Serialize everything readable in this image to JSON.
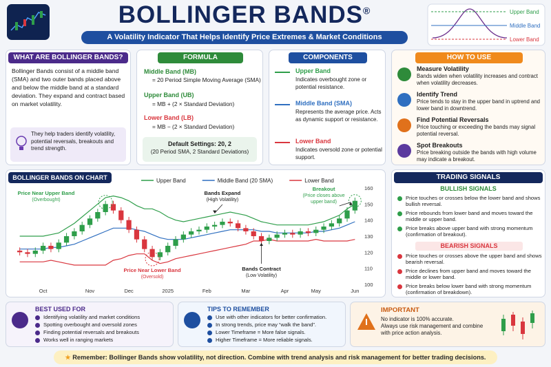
{
  "header": {
    "title": "BOLLINGER BANDS",
    "title_mark": "®",
    "subtitle": "A Volatility Indicator That Helps Identify Price Extremes & Market Conditions",
    "diagram": [
      {
        "label": "Upper Band",
        "color": "#2e9e4a"
      },
      {
        "label": "Middle Band",
        "color": "#2f6fc0"
      },
      {
        "label": "Lower Band",
        "color": "#d9363e"
      }
    ]
  },
  "what": {
    "title": "WHAT ARE BOLLINGER BANDS?",
    "body": "Bollinger Bands consist of a middle band (SMA) and two outer bands placed above and below the middle band at a standard deviation. They expand and contract based on market volatility.",
    "note": "They help traders identify volatility, potential reversals, breakouts and trend strength."
  },
  "formula": {
    "title": "FORMULA",
    "items": [
      {
        "label": "Middle Band (MB)",
        "formula": "= 20 Period Simple Moving Average (SMA)"
      },
      {
        "label": "Upper Band (UB)",
        "formula": "= MB + (2 × Standard Deviation)"
      },
      {
        "label": "Lower Band (LB)",
        "formula": "= MB − (2 × Standard Deviation)"
      }
    ],
    "settings_title": "Default Settings: 20, 2",
    "settings_note": "(20 Period SMA, 2 Standard Deviations)"
  },
  "components": {
    "title": "COMPONENTS",
    "items": [
      {
        "name": "Upper Band",
        "desc": "Indicates overbought zone or potential resistance."
      },
      {
        "name": "Middle Band (SMA)",
        "desc": "Represents the average price. Acts as dynamic support or resistance."
      },
      {
        "name": "Lower Band",
        "desc": "Indicates oversold zone or potential support."
      }
    ]
  },
  "how_to_use": {
    "title": "HOW TO USE",
    "items": [
      {
        "title": "Measure Volatility",
        "desc": "Bands widen when volatility increases and contract when volatility decreases."
      },
      {
        "title": "Identify Trend",
        "desc": "Price tends to stay in the upper band in uptrend and lower band in downtrend."
      },
      {
        "title": "Find Potential Reversals",
        "desc": "Price touching or exceeding the bands may signal potential reversal."
      },
      {
        "title": "Spot Breakouts",
        "desc": "Price breaking outside the bands with high volume may indicate a breakout."
      }
    ]
  },
  "chart_data": {
    "type": "candlestick",
    "title": "BOLLINGER BANDS ON CHART",
    "categories": [
      null,
      null,
      null,
      "Oct",
      null,
      null,
      null,
      null,
      null,
      "Nov",
      null,
      null,
      null,
      null,
      "Dec",
      null,
      null,
      null,
      null,
      "2025",
      null,
      null,
      null,
      null,
      "Feb",
      null,
      null,
      null,
      null,
      "Mar",
      null,
      null,
      null,
      null,
      "Apr",
      null,
      null,
      null,
      "May",
      null,
      null,
      null,
      null,
      "Jun"
    ],
    "ohlc": {
      "up_color": "#2e9e4a",
      "down_color": "#d9363e",
      "open": [
        121,
        120,
        119,
        121,
        124,
        122,
        126,
        130,
        133,
        137,
        141,
        145,
        150,
        146,
        140,
        134,
        128,
        122,
        117,
        120,
        124,
        128,
        131,
        133,
        134,
        136,
        137,
        139,
        138,
        135,
        133,
        130,
        127,
        129,
        131,
        132,
        131,
        133,
        132,
        134,
        136,
        138,
        141,
        146
      ],
      "high": [
        123,
        122,
        123,
        126,
        126,
        128,
        132,
        135,
        139,
        143,
        147,
        152,
        152,
        148,
        142,
        136,
        130,
        124,
        122,
        126,
        130,
        133,
        135,
        136,
        138,
        139,
        141,
        141,
        140,
        137,
        135,
        132,
        131,
        133,
        134,
        134,
        135,
        135,
        136,
        138,
        140,
        143,
        148,
        154
      ],
      "low": [
        118,
        117,
        117,
        119,
        120,
        120,
        124,
        128,
        131,
        135,
        139,
        143,
        144,
        138,
        132,
        126,
        120,
        115,
        115,
        118,
        122,
        126,
        129,
        131,
        132,
        134,
        135,
        136,
        133,
        131,
        128,
        125,
        125,
        127,
        129,
        129,
        129,
        130,
        130,
        132,
        134,
        136,
        139,
        144
      ],
      "close": [
        120,
        119,
        121,
        124,
        122,
        126,
        130,
        133,
        137,
        141,
        145,
        150,
        146,
        140,
        134,
        128,
        122,
        117,
        120,
        124,
        128,
        131,
        133,
        134,
        136,
        137,
        139,
        138,
        135,
        133,
        130,
        127,
        129,
        131,
        132,
        131,
        133,
        132,
        134,
        136,
        138,
        141,
        146,
        152
      ]
    },
    "series": [
      {
        "name": "Upper Band",
        "color": "#2e9e4a",
        "values": [
          130,
          130,
          130,
          130,
          131,
          132,
          135,
          138,
          142,
          146,
          150,
          154,
          155,
          154,
          152,
          149,
          147,
          147,
          145,
          142,
          140,
          139,
          140,
          141,
          142,
          143,
          144,
          145,
          144,
          143,
          141,
          139,
          138,
          137,
          137,
          137,
          137,
          137,
          138,
          139,
          141,
          143,
          147,
          150
        ]
      },
      {
        "name": "Middle Band (20 SMA)",
        "color": "#2f6fc0",
        "values": [
          122,
          122,
          122,
          122,
          123,
          123,
          124,
          125,
          127,
          129,
          131,
          133,
          135,
          135,
          135,
          134,
          133,
          131,
          129,
          128,
          128,
          128,
          129,
          130,
          131,
          132,
          133,
          134,
          134,
          134,
          134,
          133,
          133,
          132,
          132,
          132,
          132,
          132,
          133,
          133,
          134,
          135,
          137,
          139
        ]
      },
      {
        "name": "Lower Band",
        "color": "#d9363e",
        "values": [
          114,
          114,
          114,
          114,
          115,
          114,
          113,
          112,
          112,
          112,
          112,
          112,
          115,
          116,
          118,
          119,
          119,
          115,
          113,
          114,
          116,
          117,
          118,
          119,
          120,
          121,
          122,
          123,
          124,
          125,
          127,
          127,
          128,
          127,
          127,
          127,
          127,
          127,
          128,
          127,
          127,
          127,
          127,
          128
        ]
      }
    ],
    "ylim": [
      100,
      160
    ],
    "yticks": [
      100,
      110,
      120,
      130,
      140,
      150,
      160
    ],
    "grid": false,
    "annotations": [
      {
        "lines": [
          "Price Near Upper Band",
          "(Overbought)"
        ],
        "color": "#2e9e4a"
      },
      {
        "lines": [
          "Price Near Lower Band",
          "(Oversold)"
        ],
        "color": "#d9363e"
      },
      {
        "lines": [
          "Bands Expand",
          "(High Volatility)"
        ],
        "color": "#1d1d1d"
      },
      {
        "lines": [
          "Bands Contract",
          "(Low Volatility)"
        ],
        "color": "#1d1d1d"
      },
      {
        "lines": [
          "Breakout",
          "(Price closes above",
          "upper band)"
        ],
        "color": "#2e9e4a"
      }
    ]
  },
  "signals": {
    "title": "TRADING SIGNALS",
    "bullish": {
      "title": "BULLISH SIGNALS",
      "items": [
        "Price touches or crosses below the lower band and shows bullish reversal.",
        "Price rebounds from lower band and moves toward the middle or upper band.",
        "Price breaks above upper band with strong momentum (confirmation of breakout)."
      ]
    },
    "bearish": {
      "title": "BEARISH SIGNALS",
      "items": [
        "Price touches or crosses above the upper band and shows bearish reversal.",
        "Price declines from upper band and moves toward the middle or lower band.",
        "Price breaks below lower band with strong momentum (confirmation of breakdown)."
      ]
    }
  },
  "best_used": {
    "title": "BEST USED FOR",
    "items": [
      "Identifying volatility and market conditions",
      "Spotting overbought and oversold zones",
      "Finding potential reversals and breakouts",
      "Works well in ranging markets"
    ]
  },
  "tips": {
    "title": "TIPS TO REMEMBER",
    "items": [
      "Use with other indicators for better confirmation.",
      "In strong trends, price may “walk the band”.",
      "Lower Timeframe = More false signals.",
      "Higher Timeframe = More reliable signals."
    ]
  },
  "important": {
    "title": "IMPORTANT",
    "lines": [
      "No indicator is 100% accurate.",
      "Always use risk management and combine with price action analysis."
    ]
  },
  "footer": {
    "text": "Remember: Bollinger Bands show volatility, not direction. Combine with trend analysis and risk management for better trading decisions."
  }
}
